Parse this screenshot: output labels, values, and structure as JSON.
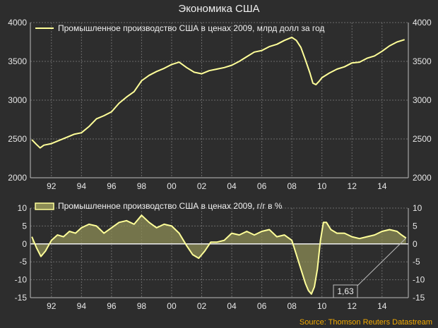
{
  "chart_title": "Экономика США",
  "source": "Source: Thomson Reuters Datastream",
  "colors": {
    "background": "#2d2d2d",
    "line": "#ffff99",
    "area": "#8c8c55",
    "grid": "#6a6a6a",
    "text": "#e6e6e6",
    "source": "#f2a900"
  },
  "x_tick_labels": [
    "92",
    "94",
    "96",
    "98",
    "00",
    "02",
    "04",
    "06",
    "08",
    "10",
    "12",
    "14"
  ],
  "chart_data": [
    {
      "type": "line",
      "legend": "Промышленное производство США в ценах 2009, млрд долл за год",
      "legend_position": "top-left",
      "grid": true,
      "xlim": [
        1990.6,
        2015.75
      ],
      "ylim": [
        2000,
        4000
      ],
      "y_ticks": [
        2000,
        2500,
        3000,
        3500,
        4000
      ],
      "x": [
        1990.7,
        1991.0,
        1991.25,
        1991.5,
        1992.0,
        1992.5,
        1993.0,
        1993.5,
        1994.0,
        1994.5,
        1995.0,
        1995.5,
        1996.0,
        1996.5,
        1997.0,
        1997.5,
        1998.0,
        1998.5,
        1999.0,
        1999.5,
        2000.0,
        2000.5,
        2001.0,
        2001.5,
        2002.0,
        2002.5,
        2003.0,
        2003.5,
        2004.0,
        2004.5,
        2005.0,
        2005.5,
        2006.0,
        2006.5,
        2007.0,
        2007.5,
        2008.0,
        2008.3,
        2008.6,
        2008.9,
        2009.2,
        2009.4,
        2009.6,
        2009.8,
        2010.0,
        2010.5,
        2011.0,
        2011.5,
        2012.0,
        2012.5,
        2013.0,
        2013.5,
        2014.0,
        2014.5,
        2015.0,
        2015.5
      ],
      "y": [
        2490,
        2430,
        2385,
        2420,
        2440,
        2480,
        2520,
        2560,
        2580,
        2660,
        2760,
        2800,
        2850,
        2960,
        3040,
        3110,
        3250,
        3320,
        3370,
        3410,
        3460,
        3490,
        3420,
        3360,
        3340,
        3380,
        3400,
        3420,
        3450,
        3500,
        3560,
        3620,
        3640,
        3690,
        3720,
        3770,
        3810,
        3770,
        3680,
        3520,
        3350,
        3220,
        3200,
        3240,
        3290,
        3350,
        3400,
        3430,
        3480,
        3490,
        3540,
        3570,
        3630,
        3700,
        3750,
        3780
      ]
    },
    {
      "type": "area",
      "legend": "Промышленное производство США в ценах 2009, г/г в %",
      "legend_position": "top-left",
      "grid": true,
      "xlim": [
        1990.6,
        2015.75
      ],
      "ylim": [
        -15,
        10
      ],
      "y_ticks": [
        -15,
        -10,
        -5,
        0,
        5,
        10
      ],
      "x": [
        1990.7,
        1991.0,
        1991.3,
        1991.6,
        1992.0,
        1992.4,
        1992.8,
        1993.2,
        1993.6,
        1994.0,
        1994.5,
        1995.0,
        1995.5,
        1996.0,
        1996.5,
        1997.0,
        1997.5,
        1998.0,
        1998.5,
        1999.0,
        1999.5,
        2000.0,
        2000.5,
        2001.0,
        2001.4,
        2001.8,
        2002.2,
        2002.6,
        2003.0,
        2003.5,
        2004.0,
        2004.5,
        2005.0,
        2005.5,
        2006.0,
        2006.5,
        2007.0,
        2007.5,
        2008.0,
        2008.3,
        2008.6,
        2008.9,
        2009.1,
        2009.3,
        2009.5,
        2009.7,
        2009.9,
        2010.1,
        2010.3,
        2010.6,
        2011.0,
        2011.5,
        2012.0,
        2012.5,
        2013.0,
        2013.5,
        2014.0,
        2014.5,
        2015.0,
        2015.3,
        2015.6
      ],
      "y": [
        2,
        -1,
        -3.5,
        -2,
        1,
        2.5,
        2,
        3.5,
        3,
        4.5,
        5.5,
        5,
        3,
        4.5,
        6,
        6.5,
        5.5,
        8,
        6,
        4.5,
        5.5,
        5,
        3,
        -0.5,
        -3,
        -4,
        -2,
        0.5,
        0.5,
        1,
        3,
        2.5,
        3.5,
        2.5,
        3.5,
        4,
        2,
        2.5,
        1,
        -3,
        -7,
        -11,
        -13,
        -14,
        -12,
        -7,
        1,
        6,
        6,
        4,
        3,
        3,
        2,
        1.5,
        2,
        2.5,
        3.5,
        4,
        3.5,
        2.5,
        1.63
      ],
      "annotation": {
        "label": "1,63",
        "x": 2015.6,
        "y": 1.63
      }
    }
  ]
}
